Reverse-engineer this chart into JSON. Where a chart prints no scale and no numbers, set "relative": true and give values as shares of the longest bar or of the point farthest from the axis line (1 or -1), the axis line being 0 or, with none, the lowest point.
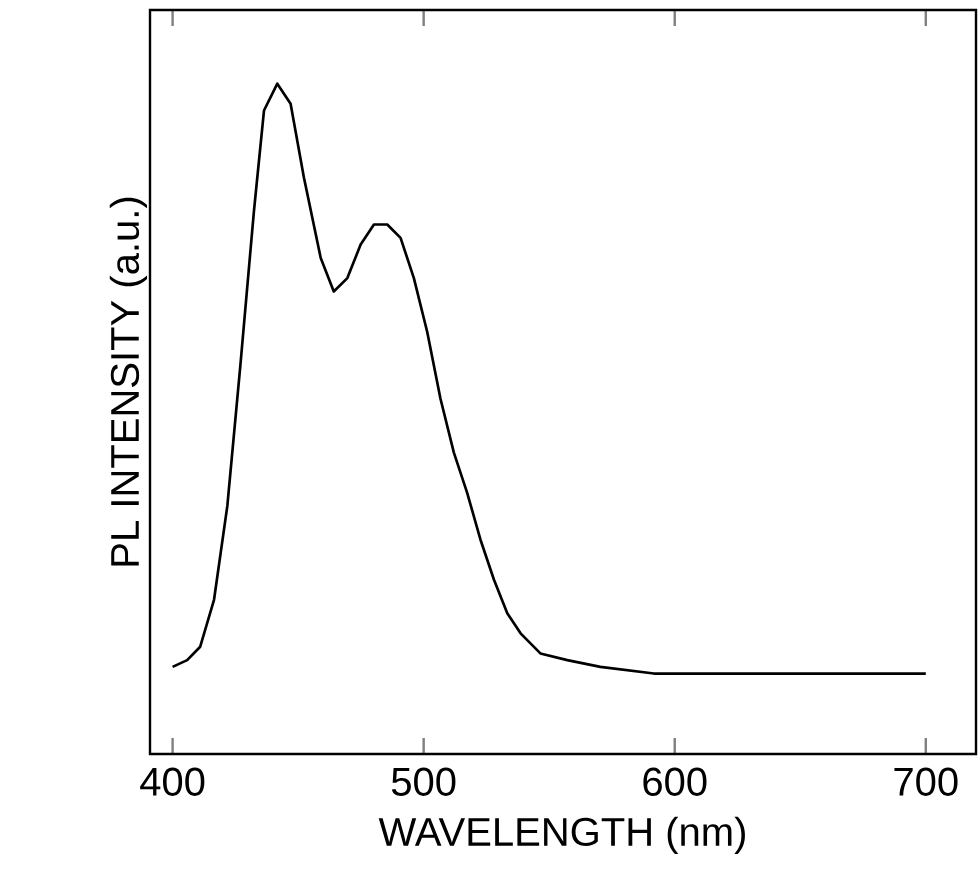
{
  "chart_data": {
    "type": "line",
    "xlabel": "WAVELENGTH (nm)",
    "ylabel": "PL INTENSITY (a.u.)",
    "relative": true,
    "xlim": [
      391,
      720
    ],
    "xticks": [
      400,
      500,
      600,
      700
    ],
    "tick_labels": "x",
    "grid": false,
    "color": "#000000",
    "x": [
      400,
      405.8,
      411,
      416.5,
      421.8,
      427,
      432.4,
      436.4,
      441.7,
      447,
      452.3,
      459,
      464.2,
      469.6,
      474.9,
      480.2,
      485.5,
      490.8,
      496.1,
      501.4,
      506.7,
      512,
      517.3,
      522.6,
      528,
      533.3,
      538.6,
      546.5,
      557.2,
      570.4,
      591.7,
      618.2,
      644.8,
      676.6,
      700
    ],
    "values": [
      0.13,
      0.14,
      0.16,
      0.23,
      0.37,
      0.58,
      0.81,
      0.96,
      1.0,
      0.97,
      0.86,
      0.74,
      0.69,
      0.71,
      0.76,
      0.79,
      0.79,
      0.77,
      0.71,
      0.63,
      0.53,
      0.45,
      0.39,
      0.32,
      0.26,
      0.21,
      0.18,
      0.15,
      0.14,
      0.13,
      0.12,
      0.12,
      0.12,
      0.12,
      0.12
    ]
  }
}
